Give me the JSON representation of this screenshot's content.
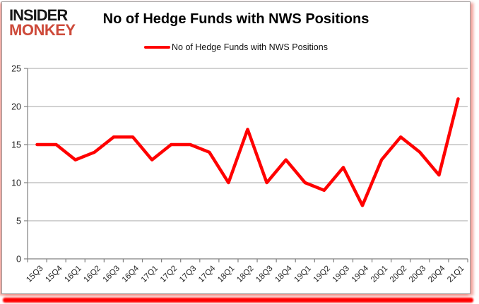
{
  "logo": {
    "line1": "INSIDER",
    "line2": "MONKEY",
    "line1_color": "#171717",
    "line2_color": "#cd4a3a"
  },
  "header": {
    "title": "No of Hedge Funds with NWS Positions"
  },
  "legend": {
    "label": "No of Hedge Funds with NWS Positions",
    "swatch_color": "#ff0000"
  },
  "frame": {
    "bottom_bar_color": "#ff0000",
    "side_glow_color": "#ee8278",
    "border_color": "#9b9b9b"
  },
  "chart_data": {
    "type": "line",
    "title": "No of Hedge Funds with NWS Positions",
    "xlabel": "",
    "ylabel": "",
    "categories": [
      "15Q3",
      "15Q4",
      "16Q1",
      "16Q2",
      "16Q3",
      "16Q4",
      "17Q1",
      "17Q2",
      "17Q3",
      "17Q4",
      "18Q1",
      "18Q2",
      "18Q3",
      "18Q4",
      "19Q1",
      "19Q2",
      "19Q3",
      "19Q4",
      "20Q1",
      "20Q2",
      "20Q3",
      "20Q4",
      "21Q1"
    ],
    "series": [
      {
        "name": "No of Hedge Funds with NWS Positions",
        "color": "#ff0000",
        "values": [
          15,
          15,
          13,
          14,
          16,
          16,
          13,
          15,
          15,
          14,
          10,
          17,
          10,
          13,
          10,
          9,
          12,
          7,
          13,
          16,
          14,
          11,
          21
        ]
      }
    ],
    "ylim": [
      0,
      25
    ],
    "yticks": [
      0,
      5,
      10,
      15,
      20,
      25
    ],
    "grid": true,
    "legend_position": "top",
    "colors": {
      "grid": "#a6a6a6",
      "axis": "#808080",
      "tick_label": "#262626"
    }
  }
}
